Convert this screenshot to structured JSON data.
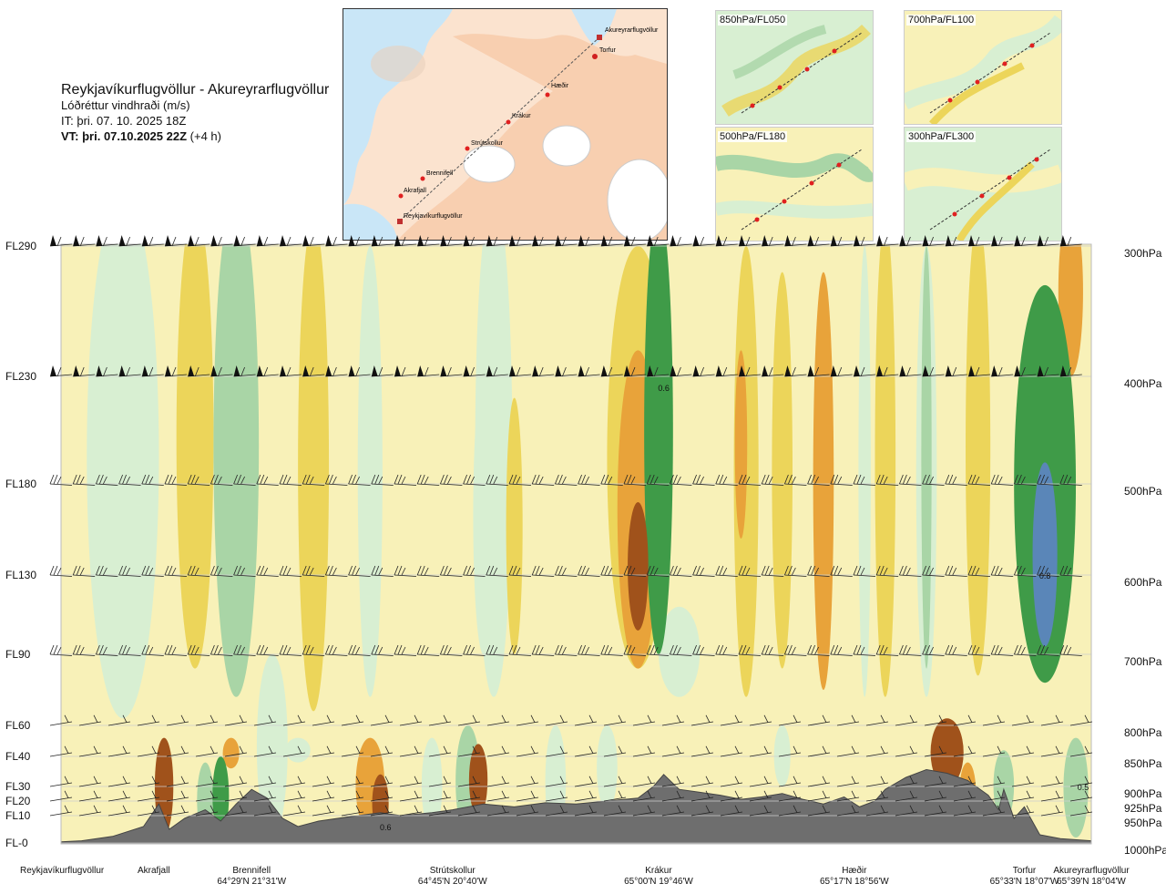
{
  "header": {
    "title": "Reykjavíkurflugvöllur - Akureyrarflugvöllur",
    "subtitle": "Lóðréttur vindhraði (m/s)",
    "issue_time": "IT: þri. 07. 10. 2025 18Z",
    "valid_label": "VT: þri. 07.10.2025 22Z",
    "valid_offset": "(+4 h)"
  },
  "thumbnails": [
    {
      "label": "850hPa/FL050"
    },
    {
      "label": "700hPa/FL100"
    },
    {
      "label": "500hPa/FL180"
    },
    {
      "label": "300hPa/FL300"
    }
  ],
  "map_labels": [
    {
      "name": "Akureyrarflugvöllur"
    },
    {
      "name": "Torfur"
    },
    {
      "name": "Hæðir"
    },
    {
      "name": "Krákur"
    },
    {
      "name": "Strútskollur"
    },
    {
      "name": "Brennifell"
    },
    {
      "name": "Akrafjall"
    },
    {
      "name": "Reykjavíkurflugvöllur"
    }
  ],
  "colors": {
    "terrain": "#6e6e6e",
    "down_strong": "#a0521b",
    "down_mod": "#e8a33a",
    "down_weak": "#ecd55a",
    "down_faint": "#f8f1b8",
    "up_faint": "#d8efd2",
    "up_weak": "#a9d5a6",
    "up_mod": "#3f9b48",
    "up_strong": "#5a86b8"
  },
  "chart_data": {
    "type": "heatmap",
    "title": "Lóðréttur vindhraði (m/s)",
    "flight_levels": [
      {
        "label": "FL290",
        "hpa": "300hPa",
        "pressure": 300
      },
      {
        "label": "FL230",
        "hpa": "400hPa",
        "pressure": 400
      },
      {
        "label": "FL180",
        "hpa": "500hPa",
        "pressure": 500
      },
      {
        "label": "FL130",
        "hpa": "600hPa",
        "pressure": 600
      },
      {
        "label": "FL90",
        "hpa": "700hPa",
        "pressure": 700
      },
      {
        "label": "FL60",
        "hpa": "800hPa",
        "pressure": 800
      },
      {
        "label": "FL40",
        "hpa": "850hPa",
        "pressure": 850
      },
      {
        "label": "FL30",
        "hpa": "900hPa",
        "pressure": 900
      },
      {
        "label": "FL20",
        "hpa": "925hPa",
        "pressure": 925
      },
      {
        "label": "FL10",
        "hpa": "950hPa",
        "pressure": 950
      },
      {
        "label": "FL-0",
        "hpa": "1000hPa",
        "pressure": 1000
      }
    ],
    "waypoints": [
      {
        "name": "Reykjavíkurflugvöllur",
        "coord": "",
        "frac": 0.0
      },
      {
        "name": "Akrafjall",
        "coord": "",
        "frac": 0.09
      },
      {
        "name": "Brennifell",
        "coord": "64°29'N 21°31'W",
        "frac": 0.185
      },
      {
        "name": "Strútskollur",
        "coord": "64°45'N 20°40'W",
        "frac": 0.38
      },
      {
        "name": "Krákur",
        "coord": "65°00'N 19°46'W",
        "frac": 0.58
      },
      {
        "name": "Hæðir",
        "coord": "65°17'N 18°56'W",
        "frac": 0.77
      },
      {
        "name": "Torfur",
        "coord": "65°33'N 18°07'W",
        "frac": 0.935
      },
      {
        "name": "Akureyrarflugvöllur",
        "coord": "65°39'N 18°04'W",
        "frac": 1.0
      }
    ],
    "annotations": [
      {
        "text": "0.6",
        "frac": 0.585,
        "pressure": 410
      },
      {
        "text": "0.8",
        "frac": 0.955,
        "pressure": 600
      },
      {
        "text": "0.6",
        "frac": 0.315,
        "pressure": 970
      },
      {
        "text": "0.5",
        "frac": 0.992,
        "pressure": 900
      }
    ],
    "terrain_profile": [
      [
        0.0,
        998
      ],
      [
        0.02,
        996
      ],
      [
        0.05,
        988
      ],
      [
        0.08,
        970
      ],
      [
        0.095,
        930
      ],
      [
        0.105,
        975
      ],
      [
        0.12,
        955
      ],
      [
        0.14,
        940
      ],
      [
        0.155,
        960
      ],
      [
        0.17,
        930
      ],
      [
        0.185,
        905
      ],
      [
        0.2,
        920
      ],
      [
        0.215,
        955
      ],
      [
        0.23,
        970
      ],
      [
        0.25,
        960
      ],
      [
        0.28,
        952
      ],
      [
        0.31,
        945
      ],
      [
        0.33,
        950
      ],
      [
        0.36,
        945
      ],
      [
        0.38,
        940
      ],
      [
        0.41,
        930
      ],
      [
        0.44,
        935
      ],
      [
        0.47,
        928
      ],
      [
        0.5,
        930
      ],
      [
        0.53,
        925
      ],
      [
        0.56,
        920
      ],
      [
        0.575,
        900
      ],
      [
        0.585,
        880
      ],
      [
        0.6,
        905
      ],
      [
        0.62,
        910
      ],
      [
        0.64,
        915
      ],
      [
        0.66,
        922
      ],
      [
        0.68,
        918
      ],
      [
        0.7,
        912
      ],
      [
        0.72,
        922
      ],
      [
        0.74,
        930
      ],
      [
        0.76,
        918
      ],
      [
        0.775,
        935
      ],
      [
        0.79,
        925
      ],
      [
        0.8,
        905
      ],
      [
        0.82,
        885
      ],
      [
        0.84,
        872
      ],
      [
        0.86,
        878
      ],
      [
        0.88,
        890
      ],
      [
        0.9,
        915
      ],
      [
        0.91,
        940
      ],
      [
        0.915,
        905
      ],
      [
        0.925,
        955
      ],
      [
        0.935,
        935
      ],
      [
        0.95,
        985
      ],
      [
        0.97,
        992
      ],
      [
        1.0,
        996
      ]
    ],
    "ridges": [
      {
        "x": 0.06,
        "p0": 260,
        "p1": 790,
        "w": 0.035,
        "level": 1
      },
      {
        "x": 0.17,
        "p0": 260,
        "p1": 760,
        "w": 0.022,
        "level": 2
      },
      {
        "x": 0.205,
        "p0": 700,
        "p1": 990,
        "w": 0.015,
        "level": 1
      },
      {
        "x": 0.3,
        "p0": 300,
        "p1": 760,
        "w": 0.012,
        "level": 1
      },
      {
        "x": 0.41,
        "p0": 400,
        "p1": 700,
        "w": 0.01,
        "level": 1
      },
      {
        "x": 0.42,
        "p0": 260,
        "p1": 760,
        "w": 0.018,
        "level": 1
      },
      {
        "x": 0.58,
        "p0": 270,
        "p1": 700,
        "w": 0.014,
        "level": 3
      },
      {
        "x": 0.6,
        "p0": 640,
        "p1": 760,
        "w": 0.02,
        "level": 1
      },
      {
        "x": 0.78,
        "p0": 300,
        "p1": 760,
        "w": 0.006,
        "level": 1
      },
      {
        "x": 0.84,
        "p0": 300,
        "p1": 760,
        "w": 0.01,
        "level": 1
      },
      {
        "x": 0.84,
        "p0": 300,
        "p1": 720,
        "w": 0.005,
        "level": 2
      },
      {
        "x": 0.955,
        "p0": 330,
        "p1": 740,
        "w": 0.03,
        "level": 3
      },
      {
        "x": 0.955,
        "p0": 480,
        "p1": 690,
        "w": 0.012,
        "level": 4
      },
      {
        "x": 0.14,
        "p0": 860,
        "p1": 990,
        "w": 0.008,
        "level": 2
      },
      {
        "x": 0.155,
        "p0": 850,
        "p1": 985,
        "w": 0.008,
        "level": 3
      },
      {
        "x": 0.23,
        "p0": 820,
        "p1": 860,
        "w": 0.012,
        "level": 1
      },
      {
        "x": 0.36,
        "p0": 820,
        "p1": 980,
        "w": 0.01,
        "level": 1
      },
      {
        "x": 0.395,
        "p0": 800,
        "p1": 990,
        "w": 0.012,
        "level": 2
      },
      {
        "x": 0.48,
        "p0": 800,
        "p1": 990,
        "w": 0.01,
        "level": 1
      },
      {
        "x": 0.53,
        "p0": 800,
        "p1": 940,
        "w": 0.01,
        "level": 1
      },
      {
        "x": 0.7,
        "p0": 800,
        "p1": 900,
        "w": 0.008,
        "level": 1
      },
      {
        "x": 0.915,
        "p0": 840,
        "p1": 960,
        "w": 0.01,
        "level": 2
      },
      {
        "x": 0.985,
        "p0": 820,
        "p1": 990,
        "w": 0.012,
        "level": 2
      }
    ],
    "sinks": [
      {
        "x": 0.13,
        "p0": 270,
        "p1": 720,
        "w": 0.018,
        "level": 1
      },
      {
        "x": 0.245,
        "p0": 280,
        "p1": 780,
        "w": 0.015,
        "level": 1
      },
      {
        "x": 0.44,
        "p0": 420,
        "p1": 700,
        "w": 0.008,
        "level": 1
      },
      {
        "x": 0.56,
        "p0": 300,
        "p1": 720,
        "w": 0.03,
        "level": 1
      },
      {
        "x": 0.56,
        "p0": 380,
        "p1": 720,
        "w": 0.02,
        "level": 2
      },
      {
        "x": 0.56,
        "p0": 520,
        "p1": 670,
        "w": 0.01,
        "level": 3
      },
      {
        "x": 0.665,
        "p0": 300,
        "p1": 760,
        "w": 0.012,
        "level": 1
      },
      {
        "x": 0.66,
        "p0": 380,
        "p1": 560,
        "w": 0.006,
        "level": 2
      },
      {
        "x": 0.7,
        "p0": 320,
        "p1": 720,
        "w": 0.01,
        "level": 1
      },
      {
        "x": 0.74,
        "p0": 320,
        "p1": 750,
        "w": 0.01,
        "level": 2
      },
      {
        "x": 0.8,
        "p0": 280,
        "p1": 760,
        "w": 0.01,
        "level": 1
      },
      {
        "x": 0.89,
        "p0": 280,
        "p1": 730,
        "w": 0.012,
        "level": 1
      },
      {
        "x": 0.98,
        "p0": 270,
        "p1": 400,
        "w": 0.012,
        "level": 2
      },
      {
        "x": 0.1,
        "p0": 820,
        "p1": 985,
        "w": 0.009,
        "level": 3
      },
      {
        "x": 0.165,
        "p0": 820,
        "p1": 870,
        "w": 0.008,
        "level": 2
      },
      {
        "x": 0.3,
        "p0": 820,
        "p1": 980,
        "w": 0.014,
        "level": 2
      },
      {
        "x": 0.31,
        "p0": 880,
        "p1": 980,
        "w": 0.008,
        "level": 4
      },
      {
        "x": 0.405,
        "p0": 830,
        "p1": 950,
        "w": 0.009,
        "level": 4
      },
      {
        "x": 0.86,
        "p0": 790,
        "p1": 900,
        "w": 0.016,
        "level": 3
      },
      {
        "x": 0.88,
        "p0": 860,
        "p1": 960,
        "w": 0.008,
        "level": 2
      }
    ]
  }
}
